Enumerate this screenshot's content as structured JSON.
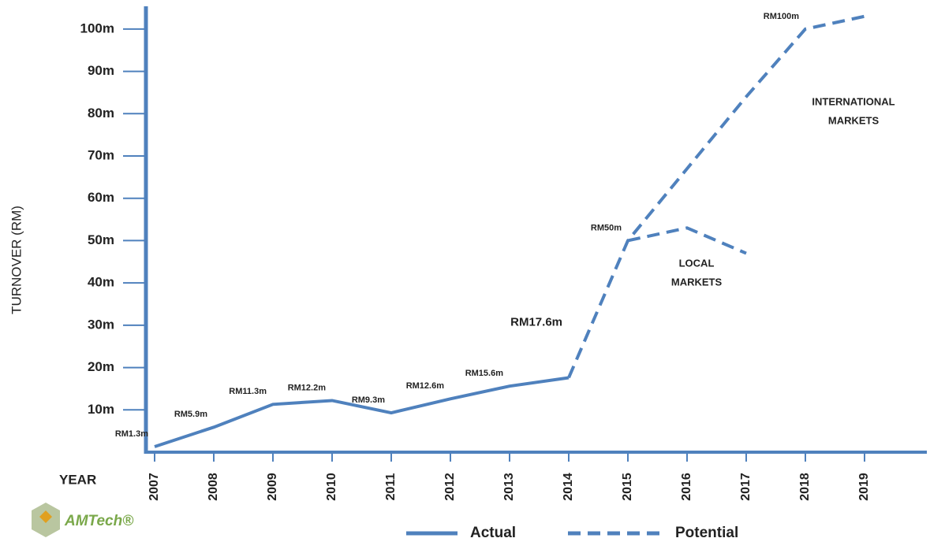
{
  "chart_data": {
    "type": "line",
    "y_label": "TURNOVER (RM)",
    "x_label": "YEAR",
    "logo": "AMTech®",
    "categories": [
      "2007",
      "2008",
      "2009",
      "2010",
      "2011",
      "2012",
      "2013",
      "2014",
      "2015",
      "2016",
      "2017",
      "2018",
      "2019"
    ],
    "ylim": [
      0,
      105
    ],
    "yticks": [
      {
        "value": 10,
        "label": "10m"
      },
      {
        "value": 20,
        "label": "20m"
      },
      {
        "value": 30,
        "label": "30m"
      },
      {
        "value": 40,
        "label": "40m"
      },
      {
        "value": 50,
        "label": "50m"
      },
      {
        "value": 60,
        "label": "60m"
      },
      {
        "value": 70,
        "label": "70m"
      },
      {
        "value": 80,
        "label": "80m"
      },
      {
        "value": 90,
        "label": "90m"
      },
      {
        "value": 100,
        "label": "100m"
      }
    ],
    "series": [
      {
        "name": "Actual",
        "color": "#4f81bd",
        "dashed": false,
        "values": [
          1.3,
          5.9,
          11.3,
          12.2,
          9.3,
          12.6,
          15.6,
          17.6,
          null,
          null,
          null,
          null,
          null
        ],
        "value_labels": [
          "RM1.3m",
          "RM5.9m",
          "RM11.3m",
          "RM12.2m",
          "RM9.3m",
          "RM12.6m",
          "RM15.6m",
          "RM17.6m",
          null,
          null,
          null,
          null,
          null
        ]
      },
      {
        "name": "Potential",
        "color": "#4f81bd",
        "dashed": true,
        "values": [
          null,
          null,
          null,
          null,
          null,
          null,
          null,
          17.6,
          50,
          67,
          84,
          100,
          103
        ],
        "value_labels": [
          null,
          null,
          null,
          null,
          null,
          null,
          null,
          null,
          "RM50m",
          null,
          null,
          "RM100m",
          null
        ]
      },
      {
        "color": "#4f81bd",
        "dashed": true,
        "values": [
          null,
          null,
          null,
          null,
          null,
          null,
          null,
          null,
          50,
          53,
          47,
          null,
          null
        ]
      }
    ],
    "annotations": [
      [
        "INTERNATIONAL",
        "MARKETS"
      ],
      [
        "LOCAL",
        "MARKETS"
      ]
    ]
  }
}
